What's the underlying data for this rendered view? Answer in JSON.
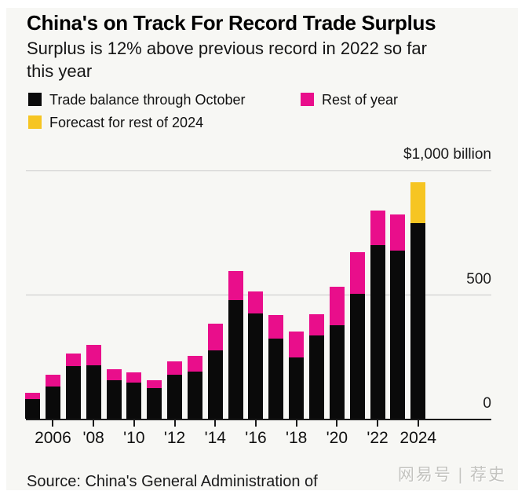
{
  "header": {
    "title": "China's on Track For Record Trade Surplus",
    "subtitle": "Surplus is 12% above previous record in 2022 so far\nthis year"
  },
  "legend": {
    "items": [
      {
        "label": "Trade balance through October",
        "color_key": "bar_black"
      },
      {
        "label": "Rest of year",
        "color_key": "bar_pink"
      },
      {
        "label": "Forecast for rest of 2024",
        "color_key": "bar_yellow"
      }
    ]
  },
  "y_axis": {
    "unit_label": "$1,000 billion",
    "tick_500": "500",
    "tick_0": "0"
  },
  "x_axis": {
    "tick_labels": [
      "2006",
      "'08",
      "'10",
      "'12",
      "'14",
      "'16",
      "'18",
      "'20",
      "'22",
      "2024"
    ]
  },
  "chart_data": {
    "type": "bar",
    "stacked": true,
    "title": "China's on Track For Record Trade Surplus",
    "ylabel": "$ billion",
    "ylim": [
      0,
      1000
    ],
    "gridlines": [
      0,
      500,
      1000
    ],
    "legend_position": "top-left",
    "x": [
      2005,
      2006,
      2007,
      2008,
      2009,
      2010,
      2011,
      2012,
      2013,
      2014,
      2015,
      2016,
      2017,
      2018,
      2019,
      2020,
      2021,
      2022,
      2023,
      2024
    ],
    "series": [
      {
        "name": "Trade balance through October",
        "color_key": "bar_black",
        "values": [
          79,
          129,
          212,
          215,
          156,
          147,
          123,
          177,
          191,
          274,
          477,
          424,
          323,
          246,
          335,
          378,
          503,
          700,
          676,
          787
        ]
      },
      {
        "name": "Rest of year",
        "color_key": "bar_pink",
        "values": [
          24,
          49,
          50,
          82,
          42,
          39,
          33,
          55,
          63,
          110,
          118,
          88,
          96,
          106,
          86,
          155,
          168,
          140,
          146,
          0
        ]
      },
      {
        "name": "Forecast for rest of 2024",
        "color_key": "bar_yellow",
        "values": [
          0,
          0,
          0,
          0,
          0,
          0,
          0,
          0,
          0,
          0,
          0,
          0,
          0,
          0,
          0,
          0,
          0,
          0,
          0,
          167
        ]
      }
    ]
  },
  "footer": {
    "source": "Source: China's General Administration of"
  },
  "watermark": "网易号 | 荐史",
  "colors": {
    "bar_black": "#0a0a0a",
    "bar_pink": "#e90e8b",
    "bar_yellow": "#f6c522",
    "background": "#f7f7f4",
    "grid": "#c9c9c9",
    "axis": "#1a1a1a"
  }
}
